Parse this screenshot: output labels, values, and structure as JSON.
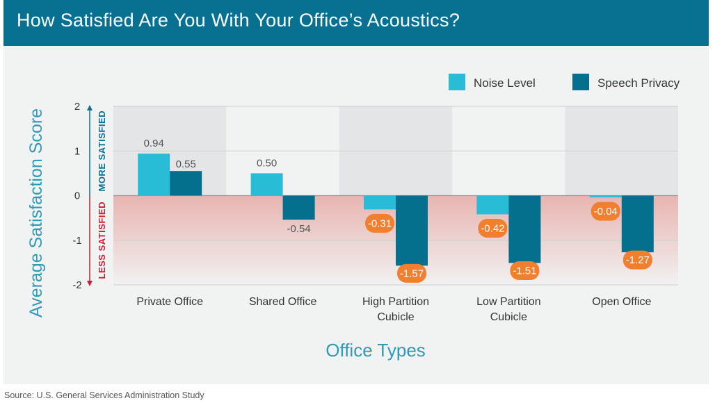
{
  "title": "How Satisfied Are You With Your Office’s Acoustics?",
  "source": "Source: U.S. General Services Administration Study",
  "annotations": {
    "more_satisfied": "MORE SATISFIED",
    "less_satisfied": "LESS SATISFIED"
  },
  "colors": {
    "header": "#087090",
    "noise_level": "#29bcd6",
    "speech_privacy": "#04708e",
    "highlight_badge": "#f08030",
    "axis_title": "#2f9bb5"
  },
  "chart_data": {
    "type": "bar",
    "title": "How Satisfied Are You With Your Office’s Acoustics?",
    "xlabel": "Office Types",
    "ylabel": "Average Satisfaction Score",
    "ylim": [
      -2,
      2
    ],
    "yticks": [
      2,
      1,
      0,
      -1,
      -2
    ],
    "ytick_labels": [
      "2",
      "1",
      "0",
      "-1",
      "-2"
    ],
    "categories": [
      [
        "Private Office"
      ],
      [
        "Shared Office"
      ],
      [
        "High Partition",
        "Cubicle"
      ],
      [
        "Low Partition",
        "Cubicle"
      ],
      [
        "Open Office"
      ]
    ],
    "series": [
      {
        "name": "Noise Level",
        "color": "#29bcd6",
        "values": [
          0.94,
          0.5,
          -0.31,
          -0.42,
          -0.04
        ],
        "labels": [
          "0.94",
          "0.50",
          "-0.31",
          "-0.42",
          "-0.04"
        ]
      },
      {
        "name": "Speech Privacy",
        "color": "#04708e",
        "values": [
          0.55,
          -0.54,
          -1.57,
          -1.51,
          -1.27
        ],
        "labels": [
          "0.55",
          "-0.54",
          "-1.57",
          "-1.51",
          "-1.27"
        ]
      }
    ],
    "legend": "top-right",
    "grid": true
  }
}
